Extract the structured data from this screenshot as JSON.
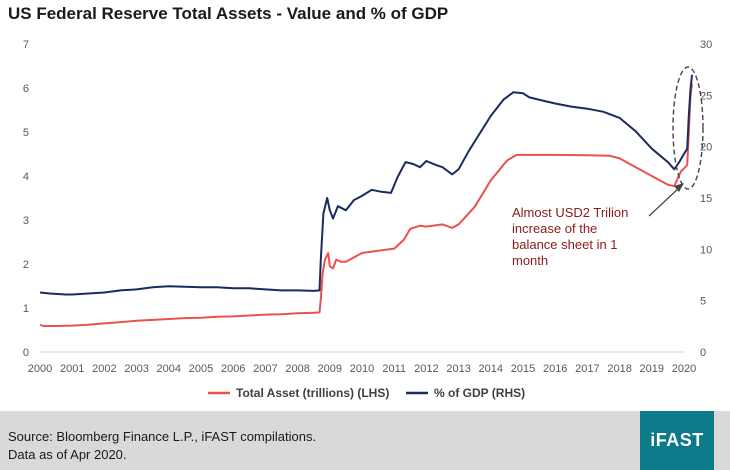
{
  "chart_data": {
    "type": "line",
    "title": "US Federal Reserve Total Assets - Value and % of GDP",
    "x_ticks": [
      "2000",
      "2001",
      "2002",
      "2003",
      "2004",
      "2005",
      "2006",
      "2007",
      "2008",
      "2009",
      "2010",
      "2011",
      "2012",
      "2013",
      "2014",
      "2015",
      "2016",
      "2017",
      "2018",
      "2019",
      "2020"
    ],
    "xlim": [
      2000,
      2020.3
    ],
    "y_left": {
      "ticks": [
        "0",
        "1",
        "2",
        "3",
        "4",
        "5",
        "6",
        "7"
      ],
      "ylim": [
        0,
        7
      ]
    },
    "y_right": {
      "ticks": [
        "0",
        "5",
        "10",
        "15",
        "20",
        "25",
        "30"
      ],
      "ylim": [
        0,
        30
      ]
    },
    "series": [
      {
        "name": "Total Asset (trillions) (LHS)",
        "axis": "left",
        "color": "#e8524f",
        "points": [
          [
            2000.0,
            0.62
          ],
          [
            2000.1,
            0.59
          ],
          [
            2000.5,
            0.59
          ],
          [
            2001.0,
            0.6
          ],
          [
            2001.5,
            0.62
          ],
          [
            2002.0,
            0.65
          ],
          [
            2002.5,
            0.68
          ],
          [
            2003.0,
            0.71
          ],
          [
            2003.5,
            0.73
          ],
          [
            2004.0,
            0.75
          ],
          [
            2004.5,
            0.77
          ],
          [
            2005.0,
            0.78
          ],
          [
            2005.5,
            0.8
          ],
          [
            2006.0,
            0.81
          ],
          [
            2006.5,
            0.83
          ],
          [
            2007.0,
            0.85
          ],
          [
            2007.5,
            0.86
          ],
          [
            2008.0,
            0.88
          ],
          [
            2008.5,
            0.89
          ],
          [
            2008.68,
            0.9
          ],
          [
            2008.72,
            1.2
          ],
          [
            2008.78,
            1.8
          ],
          [
            2008.85,
            2.1
          ],
          [
            2008.95,
            2.25
          ],
          [
            2009.0,
            1.95
          ],
          [
            2009.1,
            1.9
          ],
          [
            2009.2,
            2.1
          ],
          [
            2009.35,
            2.05
          ],
          [
            2009.5,
            2.05
          ],
          [
            2009.75,
            2.15
          ],
          [
            2010.0,
            2.25
          ],
          [
            2010.5,
            2.3
          ],
          [
            2011.0,
            2.35
          ],
          [
            2011.3,
            2.55
          ],
          [
            2011.5,
            2.8
          ],
          [
            2011.8,
            2.87
          ],
          [
            2012.0,
            2.85
          ],
          [
            2012.5,
            2.9
          ],
          [
            2012.8,
            2.82
          ],
          [
            2013.0,
            2.9
          ],
          [
            2013.5,
            3.3
          ],
          [
            2014.0,
            3.9
          ],
          [
            2014.5,
            4.35
          ],
          [
            2014.8,
            4.48
          ],
          [
            2015.0,
            4.48
          ],
          [
            2016.0,
            4.48
          ],
          [
            2017.0,
            4.47
          ],
          [
            2017.7,
            4.46
          ],
          [
            2018.0,
            4.4
          ],
          [
            2018.5,
            4.2
          ],
          [
            2019.0,
            4.0
          ],
          [
            2019.5,
            3.8
          ],
          [
            2019.7,
            3.77
          ],
          [
            2019.9,
            4.1
          ],
          [
            2020.0,
            4.17
          ],
          [
            2020.1,
            4.25
          ],
          [
            2020.15,
            5.0
          ],
          [
            2020.2,
            5.8
          ],
          [
            2020.25,
            6.1
          ]
        ]
      },
      {
        "name": "% of GDP (RHS)",
        "axis": "right",
        "color": "#1a2b5f",
        "points": [
          [
            2000.0,
            5.8
          ],
          [
            2000.3,
            5.7
          ],
          [
            2000.8,
            5.6
          ],
          [
            2001.0,
            5.6
          ],
          [
            2001.5,
            5.7
          ],
          [
            2002.0,
            5.8
          ],
          [
            2002.5,
            6.0
          ],
          [
            2003.0,
            6.1
          ],
          [
            2003.5,
            6.3
          ],
          [
            2004.0,
            6.4
          ],
          [
            2004.5,
            6.35
          ],
          [
            2005.0,
            6.3
          ],
          [
            2005.5,
            6.3
          ],
          [
            2006.0,
            6.2
          ],
          [
            2006.5,
            6.2
          ],
          [
            2007.0,
            6.1
          ],
          [
            2007.5,
            6.0
          ],
          [
            2008.0,
            6.0
          ],
          [
            2008.5,
            5.95
          ],
          [
            2008.68,
            6.0
          ],
          [
            2008.72,
            9.0
          ],
          [
            2008.8,
            13.5
          ],
          [
            2008.92,
            15.0
          ],
          [
            2009.0,
            13.8
          ],
          [
            2009.1,
            13.0
          ],
          [
            2009.25,
            14.2
          ],
          [
            2009.5,
            13.8
          ],
          [
            2009.75,
            14.8
          ],
          [
            2010.0,
            15.2
          ],
          [
            2010.3,
            15.8
          ],
          [
            2010.6,
            15.6
          ],
          [
            2010.9,
            15.5
          ],
          [
            2011.1,
            17.0
          ],
          [
            2011.35,
            18.5
          ],
          [
            2011.6,
            18.3
          ],
          [
            2011.8,
            18.0
          ],
          [
            2012.0,
            18.6
          ],
          [
            2012.3,
            18.2
          ],
          [
            2012.5,
            18.0
          ],
          [
            2012.8,
            17.3
          ],
          [
            2013.0,
            17.8
          ],
          [
            2013.3,
            19.5
          ],
          [
            2013.6,
            21.0
          ],
          [
            2014.0,
            23.0
          ],
          [
            2014.4,
            24.6
          ],
          [
            2014.7,
            25.3
          ],
          [
            2015.0,
            25.2
          ],
          [
            2015.2,
            24.8
          ],
          [
            2015.6,
            24.5
          ],
          [
            2016.0,
            24.2
          ],
          [
            2016.5,
            23.9
          ],
          [
            2017.0,
            23.7
          ],
          [
            2017.5,
            23.4
          ],
          [
            2018.0,
            22.8
          ],
          [
            2018.5,
            21.5
          ],
          [
            2019.0,
            19.8
          ],
          [
            2019.5,
            18.5
          ],
          [
            2019.7,
            17.8
          ],
          [
            2019.85,
            18.5
          ],
          [
            2020.0,
            19.3
          ],
          [
            2020.1,
            19.8
          ],
          [
            2020.15,
            23.0
          ],
          [
            2020.2,
            25.5
          ],
          [
            2020.25,
            27.0
          ]
        ]
      }
    ],
    "annotation": {
      "lines": [
        "Almost USD2 Trilion",
        "increase of the",
        "balance sheet in 1",
        "month"
      ],
      "color": "#8b1a1a",
      "arrow_target": [
        2020.1,
        4.15
      ],
      "highlight": "dashed ellipse around 2020 spike"
    },
    "legend_placement": "bottom-center"
  },
  "footer": {
    "source_line1": "Source: Bloomberg Finance L.P., iFAST compilations.",
    "source_line2": "Data as of Apr 2020.",
    "logo_text": "iFAST"
  }
}
